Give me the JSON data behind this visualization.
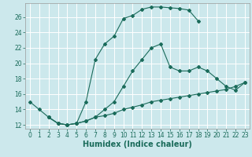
{
  "xlabel": "Humidex (Indice chaleur)",
  "bg_color": "#cce8ec",
  "grid_color": "#ffffff",
  "line_color": "#1a6b5a",
  "xlim": [
    -0.5,
    23.5
  ],
  "ylim": [
    11.5,
    27.8
  ],
  "xticks": [
    0,
    1,
    2,
    3,
    4,
    5,
    6,
    7,
    8,
    9,
    10,
    11,
    12,
    13,
    14,
    15,
    16,
    17,
    18,
    19,
    20,
    21,
    22,
    23
  ],
  "yticks": [
    12,
    14,
    16,
    18,
    20,
    22,
    24,
    26
  ],
  "line1_x": [
    0,
    1,
    2,
    3,
    4,
    5,
    6,
    7,
    8,
    9,
    10,
    11,
    12,
    13,
    14,
    15,
    16,
    17,
    18
  ],
  "line1_y": [
    15,
    14,
    13,
    12.2,
    12,
    12.2,
    15,
    20.5,
    22.5,
    23.5,
    25.8,
    26.2,
    27.0,
    27.3,
    27.3,
    27.2,
    27.1,
    26.9,
    25.5
  ],
  "line2_x": [
    2,
    3,
    4,
    5,
    6,
    7,
    8,
    9,
    10,
    11,
    12,
    13,
    14,
    15,
    16,
    17,
    18,
    19,
    20,
    21,
    22,
    23
  ],
  "line2_y": [
    13,
    12.2,
    12,
    12.2,
    12.5,
    13,
    14,
    15,
    17,
    19,
    20.5,
    22,
    22.5,
    19.5,
    19,
    19,
    19.5,
    19,
    18,
    17,
    16.5,
    17.5
  ],
  "line3_x": [
    2,
    3,
    4,
    5,
    6,
    7,
    8,
    9,
    10,
    11,
    12,
    13,
    14,
    15,
    16,
    17,
    18,
    19,
    20,
    21,
    22,
    23
  ],
  "line3_y": [
    13,
    12.2,
    12,
    12.2,
    12.5,
    13,
    13.2,
    13.5,
    14,
    14.3,
    14.6,
    15,
    15.2,
    15.4,
    15.6,
    15.8,
    16,
    16.2,
    16.4,
    16.6,
    17,
    17.5
  ],
  "tick_fontsize": 5.5,
  "xlabel_fontsize": 7
}
